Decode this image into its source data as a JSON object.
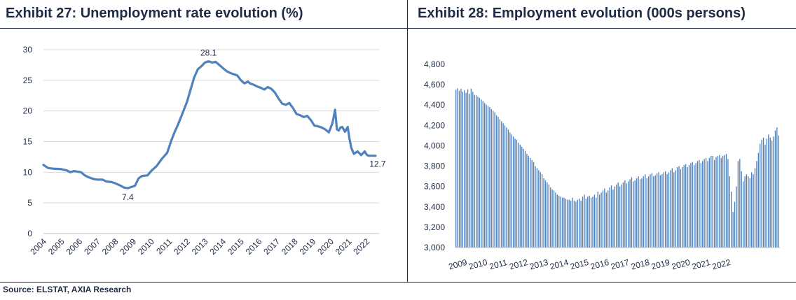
{
  "source": "Source: ELSTAT, AXIA Research",
  "chart_data": [
    {
      "type": "line",
      "title": "Exhibit 27: Unemployment rate evolution (%)",
      "xlabel": "",
      "ylabel": "",
      "ylim": [
        0,
        30
      ],
      "yticks": [
        "0",
        "5",
        "10",
        "15",
        "20",
        "25",
        "30"
      ],
      "xlim": [
        2004,
        2022.7
      ],
      "xticks": [
        "2004",
        "2005",
        "2006",
        "2007",
        "2008",
        "2009",
        "2010",
        "2011",
        "2012",
        "2013",
        "2014",
        "2015",
        "2016",
        "2017",
        "2018",
        "2019",
        "2020",
        "2021",
        "2022"
      ],
      "color": "#4f81bd",
      "grid": true,
      "series": [
        {
          "name": "Unemployment rate",
          "x": [
            2004.0,
            2004.25,
            2004.5,
            2005.0,
            2005.3,
            2005.5,
            2005.7,
            2005.9,
            2006.1,
            2006.3,
            2006.5,
            2006.8,
            2007.0,
            2007.3,
            2007.5,
            2007.8,
            2008.0,
            2008.3,
            2008.5,
            2008.7,
            2008.9,
            2009.1,
            2009.3,
            2009.5,
            2009.8,
            2010.0,
            2010.3,
            2010.6,
            2010.9,
            2011.1,
            2011.3,
            2011.5,
            2011.8,
            2012.0,
            2012.2,
            2012.4,
            2012.6,
            2012.8,
            2013.0,
            2013.2,
            2013.4,
            2013.6,
            2013.8,
            2014.0,
            2014.2,
            2014.4,
            2014.6,
            2014.8,
            2015.0,
            2015.2,
            2015.4,
            2015.5,
            2015.7,
            2015.9,
            2016.1,
            2016.3,
            2016.5,
            2016.7,
            2016.9,
            2017.1,
            2017.3,
            2017.5,
            2017.7,
            2017.9,
            2018.1,
            2018.3,
            2018.5,
            2018.7,
            2018.9,
            2019.1,
            2019.3,
            2019.5,
            2019.7,
            2019.9,
            2020.1,
            2020.25,
            2020.35,
            2020.45,
            2020.55,
            2020.65,
            2020.8,
            2020.95,
            2021.05,
            2021.15,
            2021.3,
            2021.5,
            2021.7,
            2021.9,
            2022.0,
            2022.1,
            2022.2,
            2022.35,
            2022.5
          ],
          "values": [
            11.2,
            10.7,
            10.6,
            10.5,
            10.3,
            10.0,
            10.2,
            10.1,
            10.0,
            9.5,
            9.2,
            8.9,
            8.8,
            8.8,
            8.5,
            8.4,
            8.2,
            7.8,
            7.5,
            7.4,
            7.6,
            7.8,
            9.0,
            9.4,
            9.5,
            10.2,
            11.0,
            12.2,
            13.2,
            15.0,
            16.5,
            17.8,
            20.0,
            21.5,
            23.5,
            25.5,
            26.8,
            27.3,
            27.9,
            28.1,
            27.9,
            28.0,
            27.5,
            27.0,
            26.5,
            26.2,
            26.0,
            25.8,
            25.0,
            24.5,
            24.8,
            24.5,
            24.3,
            24.0,
            23.8,
            23.5,
            23.9,
            23.6,
            23.0,
            22.0,
            21.2,
            21.0,
            21.3,
            20.5,
            19.5,
            19.3,
            19.0,
            19.2,
            18.5,
            17.6,
            17.5,
            17.3,
            17.0,
            16.5,
            18.0,
            20.2,
            17.0,
            16.8,
            17.3,
            17.4,
            16.6,
            17.4,
            15.5,
            14.0,
            13.0,
            13.4,
            12.8,
            13.4,
            12.9,
            12.7,
            12.7,
            12.7,
            12.7
          ]
        }
      ],
      "annotations": [
        {
          "text": "28.1",
          "x": 2013.2,
          "y": 28.1
        },
        {
          "text": "7.4",
          "x": 2008.7,
          "y": 7.4
        },
        {
          "text": "12.7",
          "x": 2022.5,
          "y": 12.7
        }
      ]
    },
    {
      "type": "bar",
      "title": "Exhibit 28: Employment evolution (000s persons)",
      "xlabel": "",
      "ylabel": "",
      "ylim": [
        3000,
        4800
      ],
      "yticks": [
        "3,000",
        "3,200",
        "3,400",
        "3,600",
        "3,800",
        "4,000",
        "4,200",
        "4,400",
        "4,600",
        "4,800"
      ],
      "xticks": [
        "2009",
        "2010",
        "2011",
        "2012",
        "2013",
        "2014",
        "2015",
        "2016",
        "2017",
        "2018",
        "2019",
        "2020",
        "2021",
        "2022"
      ],
      "start_year": 2009,
      "color": "#4f81bd",
      "grid": false,
      "values": [
        4550,
        4565,
        4540,
        4560,
        4530,
        4545,
        4520,
        4555,
        4510,
        4560,
        4530,
        4500,
        4495,
        4480,
        4470,
        4455,
        4440,
        4420,
        4405,
        4390,
        4380,
        4360,
        4345,
        4330,
        4300,
        4285,
        4260,
        4240,
        4220,
        4200,
        4180,
        4160,
        4130,
        4110,
        4090,
        4070,
        4060,
        4030,
        4010,
        3990,
        3970,
        3950,
        3920,
        3900,
        3880,
        3860,
        3840,
        3800,
        3780,
        3760,
        3740,
        3720,
        3680,
        3660,
        3640,
        3620,
        3590,
        3570,
        3560,
        3540,
        3520,
        3510,
        3500,
        3490,
        3490,
        3480,
        3470,
        3470,
        3460,
        3490,
        3460,
        3450,
        3470,
        3480,
        3460,
        3500,
        3520,
        3480,
        3500,
        3510,
        3490,
        3500,
        3520,
        3490,
        3550,
        3520,
        3540,
        3560,
        3580,
        3540,
        3560,
        3590,
        3610,
        3570,
        3600,
        3620,
        3640,
        3600,
        3620,
        3640,
        3660,
        3630,
        3650,
        3670,
        3690,
        3650,
        3660,
        3680,
        3700,
        3670,
        3680,
        3700,
        3720,
        3680,
        3700,
        3720,
        3730,
        3700,
        3710,
        3730,
        3740,
        3710,
        3720,
        3740,
        3750,
        3720,
        3740,
        3760,
        3780,
        3740,
        3760,
        3790,
        3800,
        3770,
        3790,
        3810,
        3820,
        3790,
        3810,
        3830,
        3840,
        3810,
        3830,
        3850,
        3860,
        3830,
        3850,
        3870,
        3880,
        3850,
        3880,
        3900,
        3900,
        3860,
        3890,
        3900,
        3910,
        3880,
        3900,
        3910,
        3920,
        3870,
        3700,
        3550,
        3350,
        3450,
        3600,
        3850,
        3870,
        3750,
        3650,
        3700,
        3720,
        3700,
        3680,
        3740,
        3720,
        3780,
        3850,
        3930,
        4020,
        4060,
        4080,
        4010,
        4070,
        4110,
        4080,
        4050,
        4090,
        4150,
        4180,
        4100
      ]
    }
  ]
}
